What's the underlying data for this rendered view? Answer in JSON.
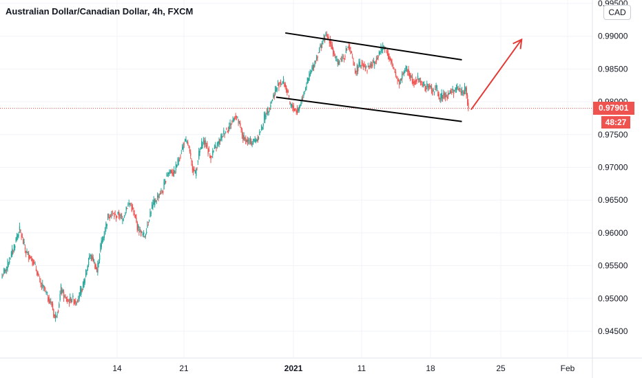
{
  "title": "Australian Dollar/Canadian Dollar, 4h, FXCM",
  "currency_label": "CAD",
  "last_price_label": "0.97901",
  "countdown_label": "48:27",
  "colors": {
    "up": "#26a69a",
    "down": "#ef5350",
    "grid": "#f0f3fa",
    "axis_text": "#131722",
    "price_line": "#ef5350",
    "drawing": "#000000",
    "arrow": "#e53935"
  },
  "chart_data": {
    "type": "candlestick",
    "symbol": "AUDCAD",
    "timeframe": "4h",
    "y_ticks": [
      "0.99500",
      "0.99000",
      "0.98500",
      "0.98000",
      "0.97500",
      "0.97000",
      "0.96500",
      "0.96000",
      "0.95500",
      "0.95000",
      "0.94500"
    ],
    "y_values": [
      0.995,
      0.99,
      0.985,
      0.98,
      0.975,
      0.97,
      0.965,
      0.96,
      0.955,
      0.95,
      0.945
    ],
    "x_ticks": [
      {
        "label": "14",
        "bold": false
      },
      {
        "label": "21",
        "bold": false
      },
      {
        "label": "2021",
        "bold": true
      },
      {
        "label": "11",
        "bold": false
      },
      {
        "label": "18",
        "bold": false
      },
      {
        "label": "25",
        "bold": false
      },
      {
        "label": "Feb",
        "bold": false
      }
    ],
    "last_price": 0.97901,
    "close_path": [
      [
        0,
        0.9535
      ],
      [
        4,
        0.9545
      ],
      [
        8,
        0.956
      ],
      [
        12,
        0.9575
      ],
      [
        16,
        0.9595
      ],
      [
        19,
        0.9605
      ],
      [
        22,
        0.959
      ],
      [
        26,
        0.957
      ],
      [
        30,
        0.9565
      ],
      [
        34,
        0.9555
      ],
      [
        38,
        0.954
      ],
      [
        42,
        0.952
      ],
      [
        46,
        0.9515
      ],
      [
        50,
        0.95
      ],
      [
        54,
        0.949
      ],
      [
        57,
        0.947
      ],
      [
        61,
        0.9485
      ],
      [
        64,
        0.9515
      ],
      [
        68,
        0.95
      ],
      [
        72,
        0.9495
      ],
      [
        76,
        0.95
      ],
      [
        80,
        0.9495
      ],
      [
        84,
        0.9505
      ],
      [
        88,
        0.952
      ],
      [
        92,
        0.9545
      ],
      [
        95,
        0.9565
      ],
      [
        99,
        0.956
      ],
      [
        103,
        0.954
      ],
      [
        107,
        0.958
      ],
      [
        111,
        0.96
      ],
      [
        115,
        0.9625
      ],
      [
        119,
        0.963
      ],
      [
        123,
        0.9625
      ],
      [
        127,
        0.9628
      ],
      [
        131,
        0.962
      ],
      [
        135,
        0.964
      ],
      [
        139,
        0.9645
      ],
      [
        143,
        0.963
      ],
      [
        147,
        0.961
      ],
      [
        151,
        0.96
      ],
      [
        155,
        0.9595
      ],
      [
        159,
        0.962
      ],
      [
        163,
        0.964
      ],
      [
        167,
        0.965
      ],
      [
        171,
        0.966
      ],
      [
        175,
        0.9665
      ],
      [
        179,
        0.969
      ],
      [
        183,
        0.9695
      ],
      [
        187,
        0.969
      ],
      [
        190,
        0.9705
      ],
      [
        194,
        0.972
      ],
      [
        198,
        0.974
      ],
      [
        202,
        0.9735
      ],
      [
        206,
        0.9705
      ],
      [
        210,
        0.969
      ],
      [
        214,
        0.972
      ],
      [
        218,
        0.974
      ],
      [
        222,
        0.9735
      ],
      [
        226,
        0.9715
      ],
      [
        230,
        0.9725
      ],
      [
        234,
        0.9735
      ],
      [
        238,
        0.9745
      ],
      [
        242,
        0.9755
      ],
      [
        246,
        0.976
      ],
      [
        250,
        0.977
      ],
      [
        254,
        0.978
      ],
      [
        258,
        0.9765
      ],
      [
        262,
        0.9745
      ],
      [
        266,
        0.974
      ],
      [
        270,
        0.9738
      ],
      [
        274,
        0.974
      ],
      [
        278,
        0.9745
      ],
      [
        282,
        0.976
      ],
      [
        286,
        0.978
      ],
      [
        290,
        0.979
      ],
      [
        294,
        0.9805
      ],
      [
        298,
        0.982
      ],
      [
        302,
        0.983
      ],
      [
        306,
        0.983
      ],
      [
        310,
        0.9815
      ],
      [
        313,
        0.9795
      ],
      [
        317,
        0.979
      ],
      [
        321,
        0.9785
      ],
      [
        325,
        0.98
      ],
      [
        329,
        0.982
      ],
      [
        333,
        0.9835
      ],
      [
        337,
        0.985
      ],
      [
        341,
        0.9865
      ],
      [
        345,
        0.988
      ],
      [
        349,
        0.9895
      ],
      [
        352,
        0.99
      ],
      [
        356,
        0.9895
      ],
      [
        360,
        0.9875
      ],
      [
        364,
        0.986
      ],
      [
        368,
        0.9865
      ],
      [
        372,
        0.987
      ],
      [
        376,
        0.9885
      ],
      [
        380,
        0.987
      ],
      [
        384,
        0.9845
      ],
      [
        388,
        0.9855
      ],
      [
        392,
        0.986
      ],
      [
        396,
        0.985
      ],
      [
        400,
        0.9855
      ],
      [
        404,
        0.9858
      ],
      [
        408,
        0.987
      ],
      [
        412,
        0.988
      ],
      [
        416,
        0.9885
      ],
      [
        420,
        0.987
      ],
      [
        424,
        0.9855
      ],
      [
        428,
        0.984
      ],
      [
        432,
        0.983
      ],
      [
        436,
        0.9845
      ],
      [
        440,
        0.985
      ],
      [
        444,
        0.9838
      ],
      [
        448,
        0.983
      ],
      [
        452,
        0.9835
      ],
      [
        456,
        0.983
      ],
      [
        460,
        0.982
      ],
      [
        464,
        0.9825
      ],
      [
        468,
        0.9815
      ],
      [
        472,
        0.982
      ],
      [
        476,
        0.9805
      ],
      [
        480,
        0.9812
      ],
      [
        484,
        0.981
      ],
      [
        488,
        0.9815
      ],
      [
        492,
        0.9818
      ],
      [
        496,
        0.982
      ],
      [
        500,
        0.9815
      ],
      [
        504,
        0.9819
      ],
      [
        507,
        0.979
      ]
    ],
    "annotations": [
      {
        "type": "trendline",
        "from": [
          308,
          0.9905
        ],
        "to": [
          500,
          0.9864
        ]
      },
      {
        "type": "trendline",
        "from": [
          298,
          0.9807
        ],
        "to": [
          500,
          0.977
        ]
      },
      {
        "type": "arrow",
        "from": [
          510,
          0.9788
        ],
        "to": [
          565,
          0.9895
        ]
      }
    ]
  }
}
